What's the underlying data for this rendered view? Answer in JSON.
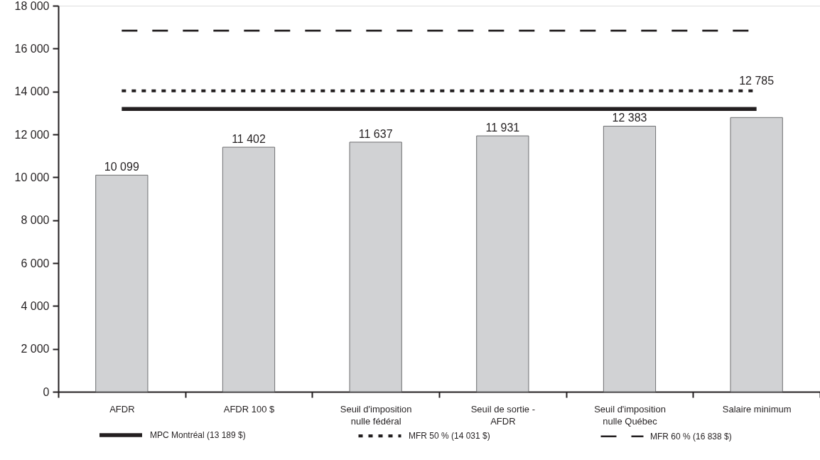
{
  "chart_data": {
    "type": "bar",
    "categories": [
      "AFDR",
      "AFDR 100 $",
      "Seuil d'imposition nulle fédéral",
      "Seuil de sortie - AFDR",
      "Seuil d'imposition nulle Québec",
      "Salaire minimum"
    ],
    "values": [
      10099,
      11402,
      11637,
      11931,
      12383,
      12785
    ],
    "color": "#d1d2d4",
    "data_labels": true,
    "ylim": [
      0,
      18000
    ],
    "yticks": [
      0,
      {
        "value": 2000,
        "label": "2 000"
      },
      {
        "value": 4000,
        "label": "4 000"
      },
      {
        "value": 6000,
        "label": "6 000"
      },
      {
        "value": 8000,
        "label": "8 000"
      },
      {
        "value": 10000,
        "label": "10 000"
      },
      {
        "value": 12000,
        "label": "12 000"
      },
      {
        "value": 14000,
        "label": "14 000"
      },
      {
        "value": 16000,
        "label": "16 000"
      },
      {
        "value": 18000,
        "label": "18 000"
      }
    ],
    "ref_lines": [
      {
        "axis": "y",
        "value": 13189,
        "label": "MPC Montréal (13 189 $)",
        "color": "#231f20",
        "line_style": "solid"
      },
      {
        "axis": "y",
        "value": 14031,
        "label": "MFR 50 % (14 031 $)",
        "color": "#231f20",
        "line_style": "dotted"
      },
      {
        "axis": "y",
        "value": 16838,
        "label": "MFR 60 % (16 838 $)",
        "color": "#231f20",
        "line_style": "dashed"
      }
    ],
    "legend": "bottom",
    "grid": false
  }
}
